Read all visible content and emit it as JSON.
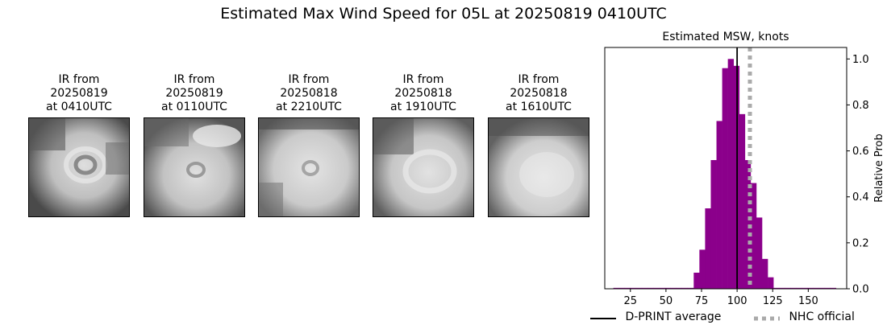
{
  "suptitle": "Estimated Max Wind Speed for 05L at 20250819 0410UTC",
  "panels": [
    {
      "line1": "IR from",
      "line2": "20250819",
      "line3": "at 0410UTC"
    },
    {
      "line1": "IR from",
      "line2": "20250819",
      "line3": "at 0110UTC"
    },
    {
      "line1": "IR from",
      "line2": "20250818",
      "line3": "at 2210UTC"
    },
    {
      "line1": "IR from",
      "line2": "20250818",
      "line3": "at 1910UTC"
    },
    {
      "line1": "IR from",
      "line2": "20250818",
      "line3": "at 1610UTC"
    }
  ],
  "chart_data": {
    "type": "bar",
    "title": "Estimated MSW, knots",
    "xlabel": "",
    "ylabel": "Relative Prob",
    "xlim": [
      7,
      177
    ],
    "ylim": [
      0,
      1.05
    ],
    "xticks": [
      25,
      50,
      75,
      100,
      125,
      150
    ],
    "yticks": [
      0.0,
      0.2,
      0.4,
      0.6,
      0.8,
      1.0
    ],
    "ytick_labels": [
      "0.0",
      "0.2",
      "0.4",
      "0.6",
      "0.8",
      "1.0"
    ],
    "bar_width": 4,
    "bar_color": "#8b008b",
    "bins": [
      {
        "x": 15,
        "value": 0.004
      },
      {
        "x": 19,
        "value": 0.004
      },
      {
        "x": 23,
        "value": 0.004
      },
      {
        "x": 27,
        "value": 0.004
      },
      {
        "x": 31,
        "value": 0.004
      },
      {
        "x": 35,
        "value": 0.004
      },
      {
        "x": 39,
        "value": 0.004
      },
      {
        "x": 43,
        "value": 0.004
      },
      {
        "x": 47,
        "value": 0.004
      },
      {
        "x": 51,
        "value": 0.004
      },
      {
        "x": 55,
        "value": 0.004
      },
      {
        "x": 59,
        "value": 0.004
      },
      {
        "x": 63,
        "value": 0.004
      },
      {
        "x": 67,
        "value": 0.004
      },
      {
        "x": 71,
        "value": 0.004
      },
      {
        "x": 71.5,
        "value": 0.07
      },
      {
        "x": 75.5,
        "value": 0.17
      },
      {
        "x": 79.5,
        "value": 0.35
      },
      {
        "x": 83.5,
        "value": 0.56
      },
      {
        "x": 87.5,
        "value": 0.73
      },
      {
        "x": 91.5,
        "value": 0.96
      },
      {
        "x": 95.5,
        "value": 1.0
      },
      {
        "x": 99.5,
        "value": 0.97
      },
      {
        "x": 103.5,
        "value": 0.76
      },
      {
        "x": 107.5,
        "value": 0.56
      },
      {
        "x": 111.5,
        "value": 0.46
      },
      {
        "x": 115.5,
        "value": 0.31
      },
      {
        "x": 119.5,
        "value": 0.13
      },
      {
        "x": 123.5,
        "value": 0.05
      },
      {
        "x": 127.5,
        "value": 0.004
      },
      {
        "x": 131.5,
        "value": 0.004
      },
      {
        "x": 135.5,
        "value": 0.004
      },
      {
        "x": 139.5,
        "value": 0.004
      },
      {
        "x": 143.5,
        "value": 0.004
      },
      {
        "x": 147.5,
        "value": 0.004
      },
      {
        "x": 151.5,
        "value": 0.004
      },
      {
        "x": 155.5,
        "value": 0.004
      },
      {
        "x": 159.5,
        "value": 0.004
      },
      {
        "x": 163.5,
        "value": 0.004
      },
      {
        "x": 167.5,
        "value": 0.004
      }
    ],
    "lines": [
      {
        "name": "D-PRINT average",
        "x": 100,
        "color": "#000000",
        "style": "solid"
      },
      {
        "name": "NHC official",
        "x": 109,
        "color": "#aaaaaa",
        "style": "dotted"
      }
    ],
    "legend_position": "bottom"
  }
}
